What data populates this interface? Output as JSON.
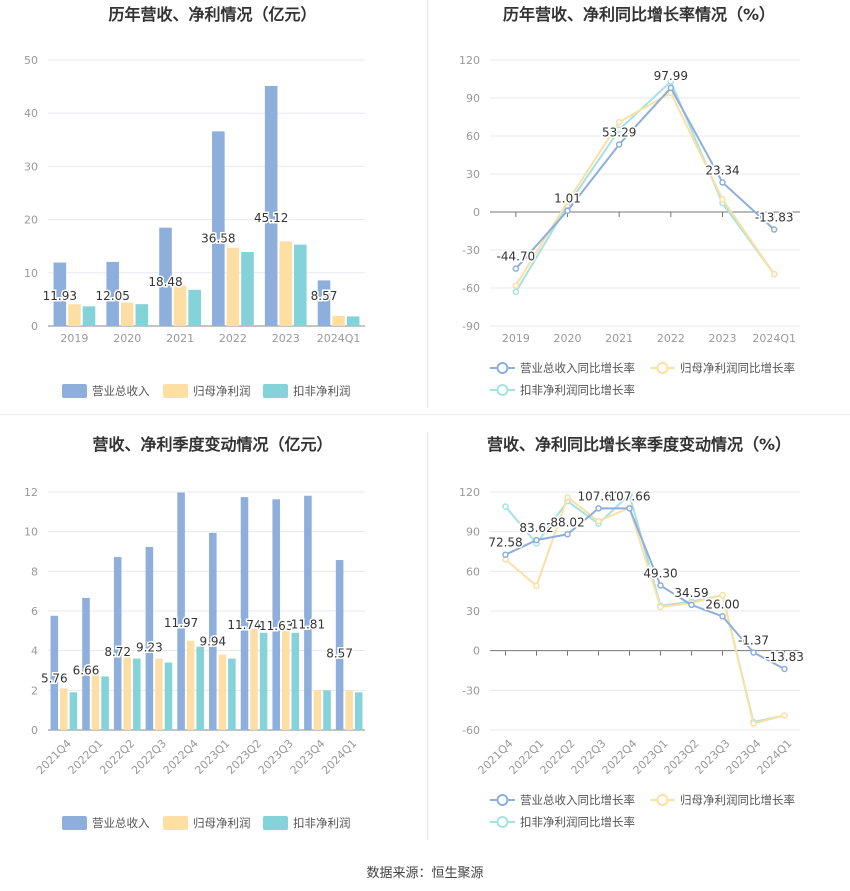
{
  "source": "数据来源：恒生聚源",
  "colors": {
    "revenue": "#8eaedc",
    "parent_net": "#fddfa6",
    "deducted_net": "#84d3d8",
    "rev_growth_line": "#8eaedc",
    "parent_growth_line": "#fbe0a3",
    "deducted_growth_line": "#a6e2e3",
    "axis": "#999999",
    "grid": "#e6e8ef",
    "title": "#333333"
  },
  "chart_data": [
    {
      "id": "annual-bar",
      "type": "bar",
      "title": "历年营收、净利情况（亿元）",
      "categories": [
        "2019",
        "2020",
        "2021",
        "2022",
        "2023",
        "2024Q1"
      ],
      "series": [
        {
          "name": "营业总收入",
          "values": [
            11.93,
            12.05,
            18.48,
            36.58,
            45.12,
            8.57
          ]
        },
        {
          "name": "归母净利润",
          "values": [
            4.1,
            4.4,
            7.6,
            14.7,
            15.9,
            1.9
          ]
        },
        {
          "name": "扣非净利润",
          "values": [
            3.7,
            4.1,
            6.8,
            13.9,
            15.3,
            1.8
          ]
        }
      ],
      "data_labels": [
        "11.93",
        "12.05",
        "18.48",
        "36.58",
        "45.12",
        "8.57"
      ],
      "ylim": [
        0,
        50
      ],
      "yticks": [
        0,
        10,
        20,
        30,
        40,
        50
      ],
      "grid": true,
      "legend": "bottom"
    },
    {
      "id": "annual-line",
      "type": "line",
      "title": "历年营收、净利同比增长率情况（%）",
      "categories": [
        "2019",
        "2020",
        "2021",
        "2022",
        "2023",
        "2024Q1"
      ],
      "series": [
        {
          "name": "营业总收入同比增长率",
          "values": [
            -44.7,
            1.01,
            53.29,
            97.99,
            23.34,
            -13.83
          ]
        },
        {
          "name": "归母净利润同比增长率",
          "values": [
            -58,
            8,
            71,
            94,
            10,
            -49
          ]
        },
        {
          "name": "扣非净利润同比增长率",
          "values": [
            -63,
            5,
            65,
            103,
            7,
            -49
          ]
        }
      ],
      "data_labels": [
        "-44.70",
        "1.01",
        "53.29",
        "97.99",
        "23.34",
        "-13.83"
      ],
      "ylim": [
        -90,
        120
      ],
      "yticks": [
        -90,
        -60,
        -30,
        0,
        30,
        60,
        90,
        120
      ],
      "grid": true,
      "legend": "bottom"
    },
    {
      "id": "quarter-bar",
      "type": "bar",
      "title": "营收、净利季度变动情况（亿元）",
      "categories": [
        "2021Q4",
        "2022Q1",
        "2022Q2",
        "2022Q3",
        "2022Q4",
        "2023Q1",
        "2023Q2",
        "2023Q3",
        "2023Q4",
        "2024Q1"
      ],
      "series": [
        {
          "name": "营业总收入",
          "values": [
            5.76,
            6.66,
            8.72,
            9.23,
            11.97,
            9.94,
            11.74,
            11.63,
            11.81,
            8.57
          ]
        },
        {
          "name": "归母净利润",
          "values": [
            2.1,
            2.9,
            3.8,
            3.6,
            4.5,
            3.8,
            5.1,
            5.0,
            2.0,
            2.0
          ]
        },
        {
          "name": "扣非净利润",
          "values": [
            1.9,
            2.7,
            3.6,
            3.4,
            4.2,
            3.6,
            4.9,
            4.9,
            2.0,
            1.9
          ]
        }
      ],
      "data_labels": [
        "5.76",
        "6.66",
        "8.72",
        "9.23",
        "11.97",
        "9.94",
        "11.74",
        "11.63",
        "11.81",
        "8.57"
      ],
      "ylim": [
        0,
        12
      ],
      "yticks": [
        0,
        2,
        4,
        6,
        8,
        10,
        12
      ],
      "grid": true,
      "legend": "bottom"
    },
    {
      "id": "quarter-line",
      "type": "line",
      "title": "营收、净利同比增长率季度变动情况（%）",
      "categories": [
        "2021Q4",
        "2022Q1",
        "2022Q2",
        "2022Q3",
        "2022Q4",
        "2023Q1",
        "2023Q2",
        "2023Q3",
        "2023Q4",
        "2024Q1"
      ],
      "series": [
        {
          "name": "营业总收入同比增长率",
          "values": [
            72.58,
            83.62,
            88.02,
            107.6,
            107.66,
            49.3,
            34.59,
            26.0,
            -1.37,
            -13.83
          ]
        },
        {
          "name": "归母净利润同比增长率",
          "values": [
            69,
            49,
            116,
            98,
            108,
            33,
            36,
            42,
            -55,
            -49
          ]
        },
        {
          "name": "扣非净利润同比增长率",
          "values": [
            109,
            81,
            113,
            96,
            118,
            34,
            37,
            42,
            -54,
            -49
          ]
        }
      ],
      "data_labels": [
        "72.58",
        "83.62",
        "88.02",
        "107.60",
        "107.66",
        "49.30",
        "34.59",
        "26.00",
        "-1.37",
        "-13.83"
      ],
      "ylim": [
        -60,
        120
      ],
      "yticks": [
        -60,
        -30,
        0,
        30,
        60,
        90,
        120
      ],
      "grid": true,
      "legend": "bottom"
    }
  ]
}
